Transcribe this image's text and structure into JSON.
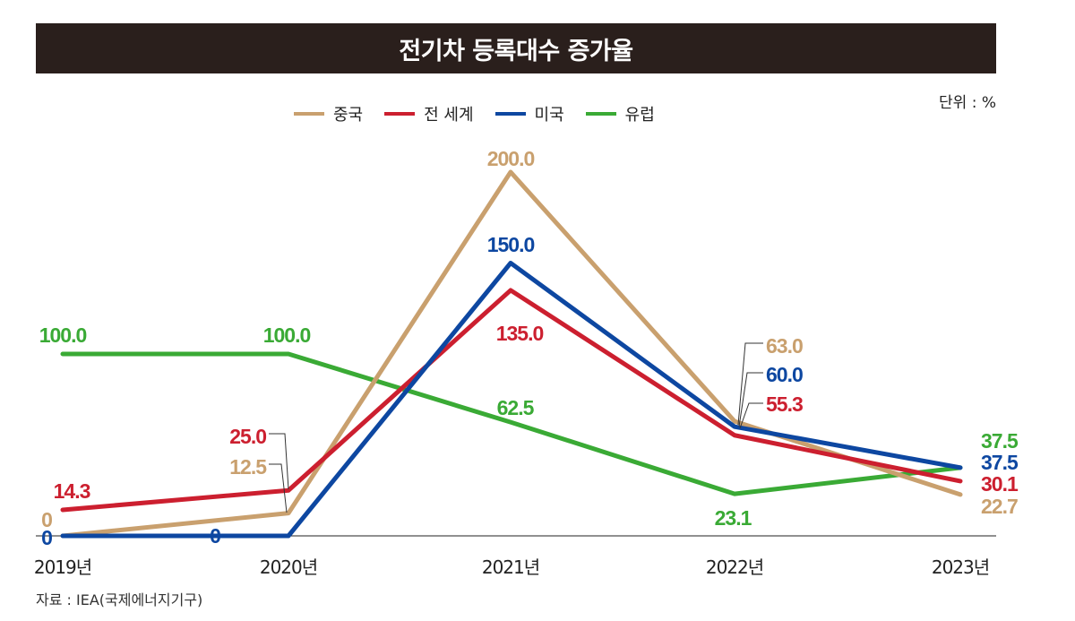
{
  "chart_data": {
    "type": "line",
    "title": "전기차 등록대수 증가율",
    "unit_label": "단위 : %",
    "categories": [
      "2019년",
      "2020년",
      "2021년",
      "2022년",
      "2023년"
    ],
    "series": [
      {
        "name": "중국",
        "color": "#c9a06e",
        "values": [
          0,
          12.5,
          200.0,
          63.0,
          22.7
        ],
        "labels": [
          "0",
          "12.5",
          "200.0",
          "63.0",
          "22.7"
        ]
      },
      {
        "name": "전 세계",
        "color": "#cc1f2f",
        "values": [
          14.3,
          25.0,
          135.0,
          55.3,
          30.1
        ],
        "labels": [
          "14.3",
          "25.0",
          "135.0",
          "55.3",
          "30.1"
        ]
      },
      {
        "name": "미국",
        "color": "#0d47a1",
        "values": [
          0,
          0,
          150.0,
          60.0,
          37.5
        ],
        "labels": [
          "0",
          "0",
          "150.0",
          "60.0",
          "37.5"
        ]
      },
      {
        "name": "유럽",
        "color": "#3aaa35",
        "values": [
          100.0,
          100.0,
          62.5,
          23.1,
          37.5
        ],
        "labels": [
          "100.0",
          "100.0",
          "62.5",
          "23.1",
          "37.5"
        ]
      }
    ],
    "ylim": [
      0,
      200
    ],
    "grid": false,
    "legend_position": "top-center",
    "source": "자료 : IEA(국제에너지기구)"
  }
}
